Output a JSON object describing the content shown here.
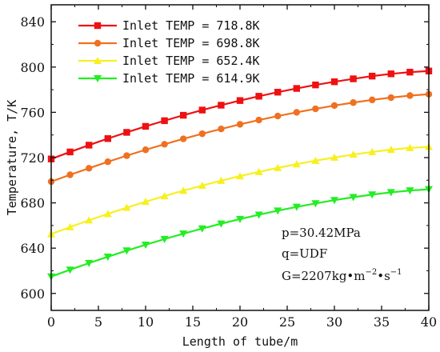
{
  "chart_data": {
    "type": "line",
    "xlabel": "Length of tube/m",
    "ylabel": "Temperature, T/K",
    "xlim": [
      0,
      40
    ],
    "ylim": [
      585,
      855
    ],
    "xticks": [
      0,
      5,
      10,
      15,
      20,
      25,
      30,
      35,
      40
    ],
    "yticks": [
      600,
      640,
      680,
      720,
      760,
      800,
      840
    ],
    "grid": false,
    "legend_position": "top-left",
    "x": [
      0,
      2,
      4,
      6,
      8,
      10,
      12,
      14,
      16,
      18,
      20,
      22,
      24,
      26,
      28,
      30,
      32,
      34,
      36,
      38,
      40
    ],
    "series": [
      {
        "name": "Inlet TEMP = 718.8K",
        "color": "#ee1111",
        "marker": "square",
        "values": [
          718.8,
          725.0,
          731.0,
          736.8,
          742.3,
          747.6,
          752.6,
          757.4,
          762.0,
          766.3,
          770.4,
          774.2,
          777.8,
          781.1,
          784.2,
          787.0,
          789.6,
          792.0,
          794.0,
          795.5,
          796.5
        ]
      },
      {
        "name": "Inlet TEMP = 698.8K",
        "color": "#f07020",
        "marker": "circle",
        "values": [
          698.8,
          704.8,
          710.6,
          716.3,
          721.7,
          726.9,
          731.8,
          736.6,
          741.1,
          745.3,
          749.4,
          753.2,
          756.7,
          760.0,
          763.1,
          766.0,
          768.6,
          771.0,
          773.0,
          774.8,
          776.0
        ]
      },
      {
        "name": "Inlet TEMP = 652.4K",
        "color": "#f7f020",
        "marker": "triangle-up",
        "values": [
          652.4,
          658.6,
          664.6,
          670.3,
          675.8,
          681.0,
          686.0,
          690.8,
          695.3,
          699.6,
          703.6,
          707.4,
          710.9,
          714.2,
          717.3,
          720.1,
          722.7,
          725.0,
          727.0,
          728.6,
          729.5
        ]
      },
      {
        "name": "Inlet TEMP = 614.9K",
        "color": "#22ee22",
        "marker": "triangle-down",
        "values": [
          614.9,
          620.9,
          626.8,
          632.4,
          637.8,
          643.0,
          648.0,
          652.8,
          657.3,
          661.6,
          665.7,
          669.5,
          673.1,
          676.4,
          679.5,
          682.4,
          685.0,
          687.3,
          689.3,
          690.9,
          692.0
        ]
      }
    ]
  },
  "annotation": {
    "line1": "p=30.42MPa",
    "line2": "q=UDF",
    "line3_base": "G=2207kg•m",
    "line3_exp1": "−2",
    "line3_mid": "•s",
    "line3_exp2": "−1"
  }
}
